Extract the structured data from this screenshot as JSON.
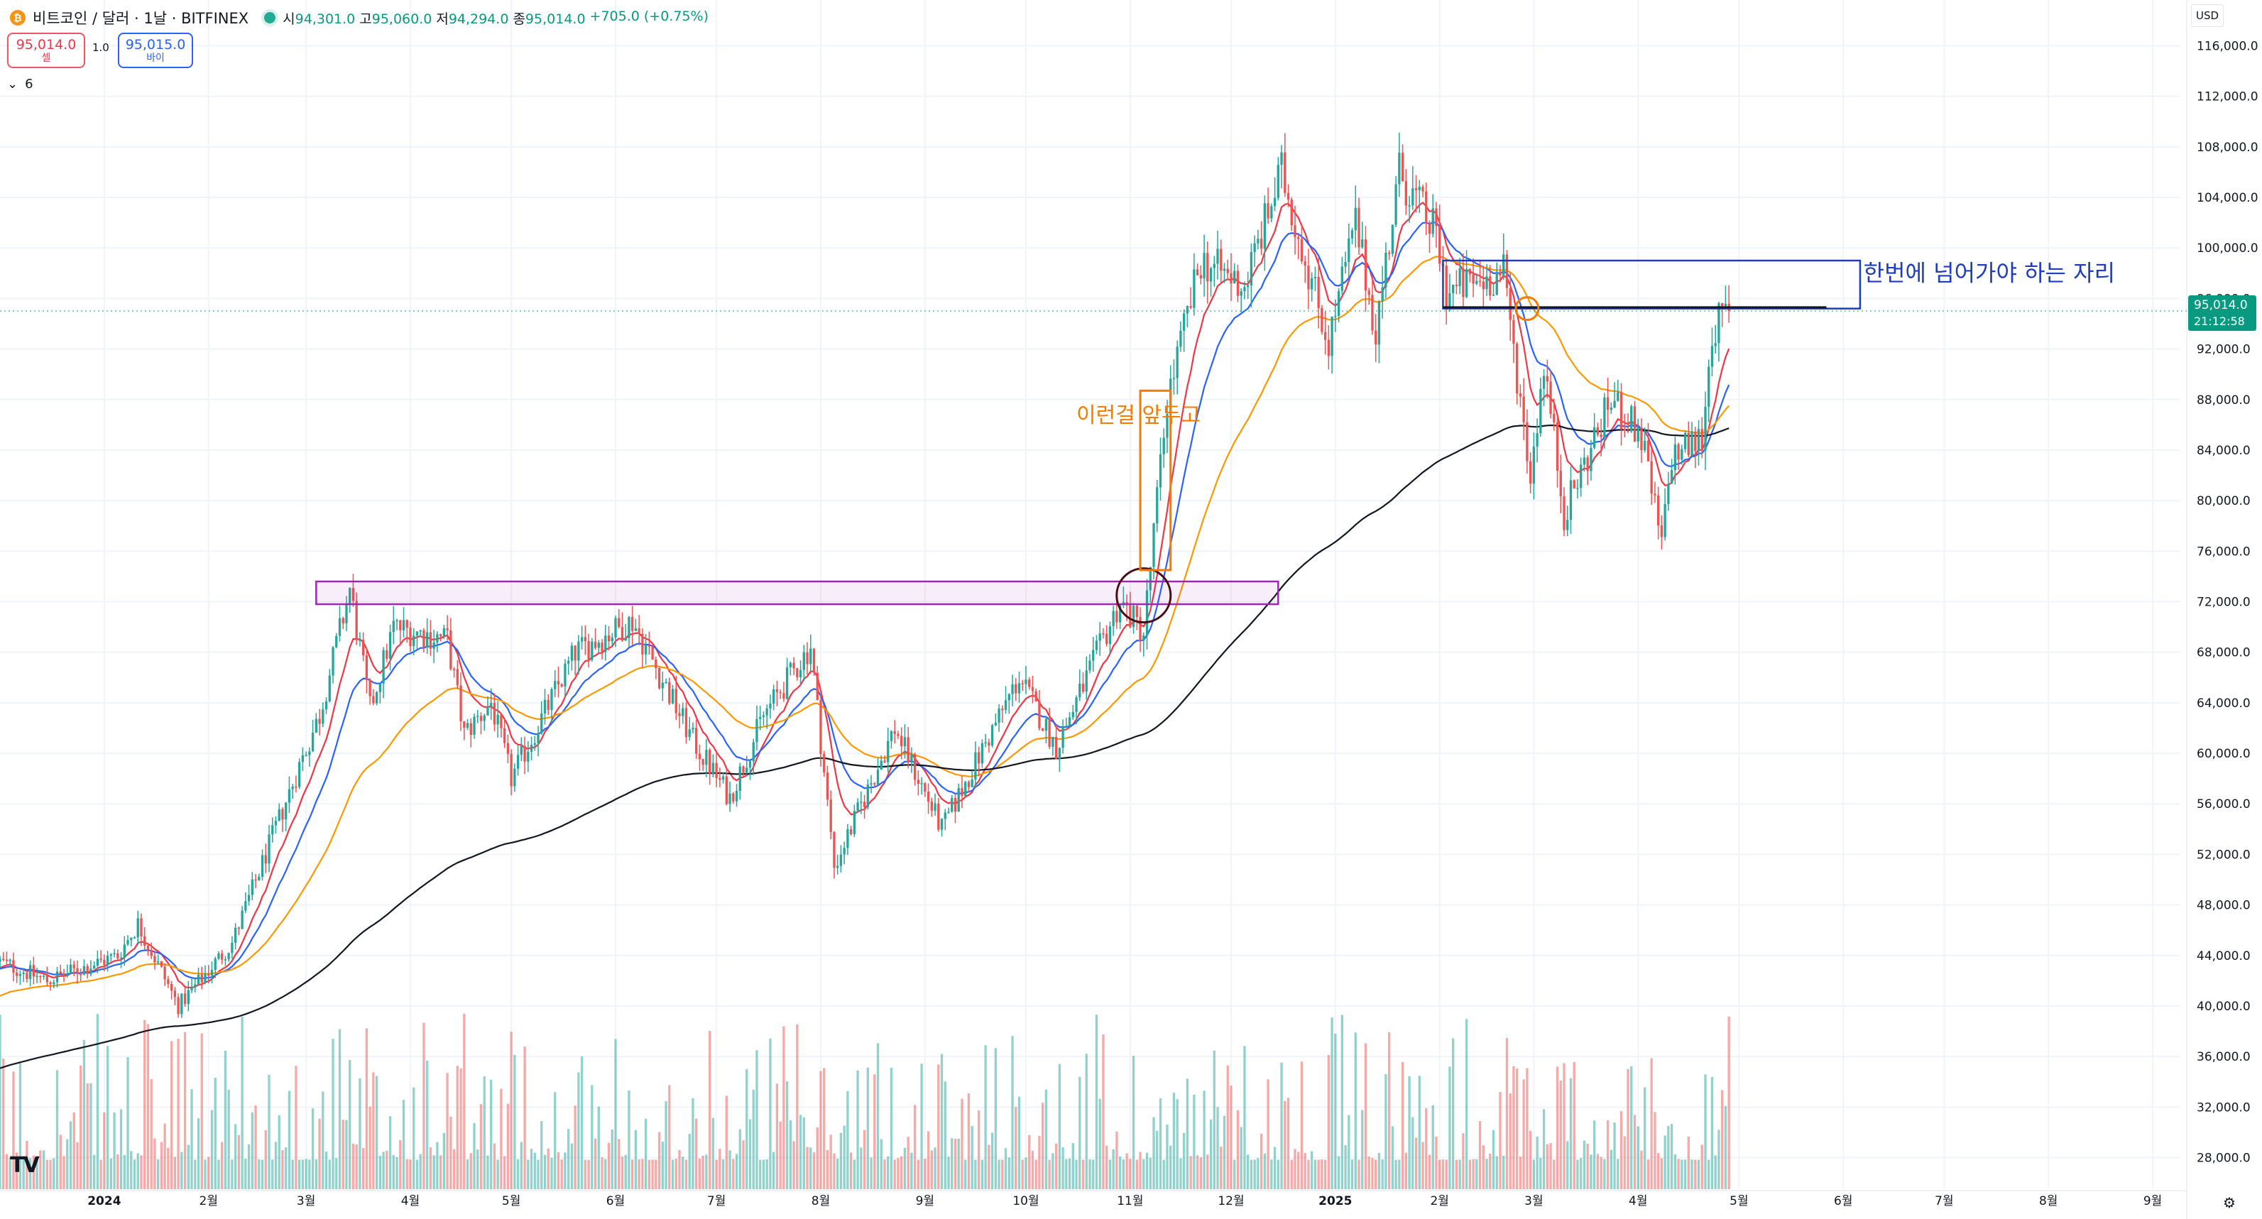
{
  "header": {
    "coin_icon": "bitcoin-icon",
    "symbol_title": "비트코인 / 달러 · 1날 · BITFINEX",
    "ohlc": [
      {
        "k": "시",
        "v": "94,301.0"
      },
      {
        "k": "고",
        "v": "95,060.0"
      },
      {
        "k": "저",
        "v": "94,294.0"
      },
      {
        "k": "종",
        "v": "95,014.0"
      },
      {
        "k": "",
        "v": "+705.0 (+0.75%)"
      }
    ],
    "sell_price": "95,014.0",
    "sell_label": "셀",
    "spread": "1.0",
    "buy_price": "95,015.0",
    "buy_label": "바이",
    "collapse_icon": "chevron-down-icon",
    "indicator_count": "6",
    "currency": "USD"
  },
  "colors": {
    "up": "#26a69a",
    "down": "#ef5350",
    "ema_fast": "#f23645",
    "ema_mid": "#2962ff",
    "ema_slow": "#ff9800",
    "ema_long": "#131722",
    "price_tag": "#089981",
    "annot_orange": "#f57c00",
    "annot_purple": "#9c27b0",
    "annot_blue": "#1e3cbe"
  },
  "chart_data": {
    "type": "candlestick",
    "title": "비트코인 / 달러 · 1날 · BITFINEX",
    "y_scale": "linear",
    "ylim": [
      25500,
      118500
    ],
    "y_ticks": [
      "116,000.0",
      "112,000.0",
      "108,000.0",
      "104,000.0",
      "100,000.0",
      "96,000.0",
      "92,000.0",
      "88,000.0",
      "84,000.0",
      "80,000.0",
      "76,000.0",
      "72,000.0",
      "68,000.0",
      "64,000.0",
      "60,000.0",
      "56,000.0",
      "52,000.0",
      "48,000.0",
      "44,000.0",
      "40,000.0",
      "36,000.0",
      "32,000.0",
      "28,000.0"
    ],
    "x_ticks": [
      {
        "date": "2024-01-01",
        "label": "2024"
      },
      {
        "date": "2024-02-01",
        "label": "2월"
      },
      {
        "date": "2024-03-01",
        "label": "3월"
      },
      {
        "date": "2024-04-01",
        "label": "4월"
      },
      {
        "date": "2024-05-01",
        "label": "5월"
      },
      {
        "date": "2024-06-01",
        "label": "6월"
      },
      {
        "date": "2024-07-01",
        "label": "7월"
      },
      {
        "date": "2024-08-01",
        "label": "8월"
      },
      {
        "date": "2024-09-01",
        "label": "9월"
      },
      {
        "date": "2024-10-01",
        "label": "10월"
      },
      {
        "date": "2024-11-01",
        "label": "11월"
      },
      {
        "date": "2024-12-01",
        "label": "12월"
      },
      {
        "date": "2025-01-01",
        "label": "2025"
      },
      {
        "date": "2025-02-01",
        "label": "2월"
      },
      {
        "date": "2025-03-01",
        "label": "3월"
      },
      {
        "date": "2025-04-01",
        "label": "4월"
      },
      {
        "date": "2025-05-01",
        "label": "5월"
      },
      {
        "date": "2025-06-01",
        "label": "6월"
      },
      {
        "date": "2025-07-01",
        "label": "7월"
      },
      {
        "date": "2025-08-01",
        "label": "8월"
      },
      {
        "date": "2025-09-01",
        "label": "9월"
      }
    ],
    "x_range": [
      "2023-12-01",
      "2025-09-09"
    ],
    "price_path": [
      [
        "2023-12-01",
        43500
      ],
      [
        "2023-12-15",
        42000
      ],
      [
        "2024-01-05",
        44000
      ],
      [
        "2024-01-11",
        46500
      ],
      [
        "2024-01-23",
        40000
      ],
      [
        "2024-02-08",
        45000
      ],
      [
        "2024-02-28",
        59000
      ],
      [
        "2024-03-05",
        63000
      ],
      [
        "2024-03-14",
        73000
      ],
      [
        "2024-03-20",
        63500
      ],
      [
        "2024-03-27",
        70000
      ],
      [
        "2024-04-12",
        69000
      ],
      [
        "2024-04-17",
        61500
      ],
      [
        "2024-04-25",
        64000
      ],
      [
        "2024-05-01",
        58000
      ],
      [
        "2024-05-20",
        68000
      ],
      [
        "2024-06-06",
        70500
      ],
      [
        "2024-06-24",
        61000
      ],
      [
        "2024-07-05",
        56500
      ],
      [
        "2024-07-15",
        63000
      ],
      [
        "2024-07-29",
        68500
      ],
      [
        "2024-08-05",
        51000
      ],
      [
        "2024-08-23",
        62000
      ],
      [
        "2024-09-06",
        54000
      ],
      [
        "2024-09-29",
        66000
      ],
      [
        "2024-10-10",
        60500
      ],
      [
        "2024-10-29",
        72000
      ],
      [
        "2024-11-05",
        69500
      ],
      [
        "2024-11-12",
        88000
      ],
      [
        "2024-11-22",
        99000
      ],
      [
        "2024-12-05",
        97000
      ],
      [
        "2024-12-16",
        106000
      ],
      [
        "2024-12-30",
        92500
      ],
      [
        "2025-01-07",
        102000
      ],
      [
        "2025-01-13",
        93500
      ],
      [
        "2025-01-20",
        106000
      ],
      [
        "2025-01-31",
        101000
      ],
      [
        "2025-02-03",
        96500
      ],
      [
        "2025-02-20",
        98000
      ],
      [
        "2025-02-28",
        82000
      ],
      [
        "2025-03-04",
        91000
      ],
      [
        "2025-03-10",
        79000
      ],
      [
        "2025-03-24",
        88000
      ],
      [
        "2025-04-02",
        85000
      ],
      [
        "2025-04-08",
        76500
      ],
      [
        "2025-04-11",
        83500
      ],
      [
        "2025-04-20",
        85000
      ],
      [
        "2025-04-23",
        93500
      ],
      [
        "2025-04-28",
        95014
      ]
    ],
    "last_date": "2025-04-28",
    "series": [
      {
        "name": "",
        "type": "ema",
        "length": 10
      },
      {
        "name": "",
        "type": "ema",
        "length": 20
      },
      {
        "name": "",
        "type": "ema",
        "length": 50
      },
      {
        "name": "",
        "type": "ema",
        "length": 200
      }
    ],
    "volume_pane": {
      "shown": true,
      "ylim": [
        0,
        1
      ]
    },
    "last_price": {
      "value": 95014.0,
      "label": "95,014.0",
      "countdown": "21:12:58"
    },
    "annotations": [
      {
        "kind": "rect",
        "color": "purple",
        "x_start": "2024-03-04",
        "x_end": "2024-12-15",
        "y_low": 71800,
        "y_high": 73600
      },
      {
        "kind": "circle",
        "color": "darkred",
        "date": "2024-11-05",
        "price": 72500
      },
      {
        "kind": "bracket",
        "color": "orange",
        "x_start": "2024-11-04",
        "x_end": "2024-11-13",
        "y_low": 74500,
        "y_high": 88700
      },
      {
        "kind": "text",
        "color": "orange",
        "text": "이런걸 앞두고",
        "date": "2024-10-16",
        "price": 86200
      },
      {
        "kind": "rect",
        "color": "blue",
        "x_start": "2025-02-02",
        "x_end": "2025-06-06",
        "y_low": 95200,
        "y_high": 99000
      },
      {
        "kind": "hline",
        "color": "black",
        "x_start": "2025-02-02",
        "x_end": "2025-05-27",
        "price": 95300
      },
      {
        "kind": "circle",
        "color": "orange",
        "date": "2025-02-27",
        "price": 95200
      },
      {
        "kind": "text",
        "color": "blue",
        "text": "한번에 넘어가야 하는 자리",
        "date": "2025-06-07",
        "price": 97400
      }
    ]
  }
}
